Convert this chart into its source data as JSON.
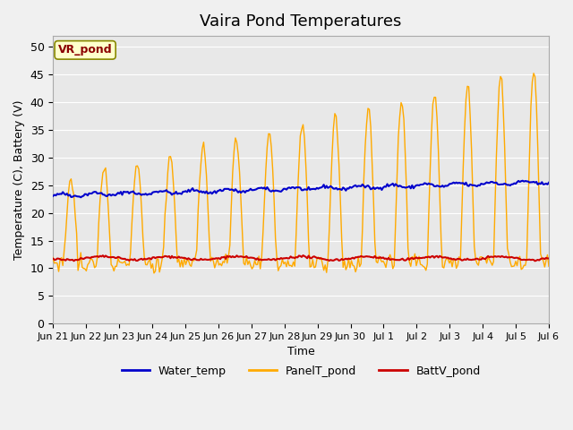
{
  "title": "Vaira Pond Temperatures",
  "xlabel": "Time",
  "ylabel": "Temperature (C), Battery (V)",
  "ylim": [
    0,
    52
  ],
  "yticks": [
    0,
    5,
    10,
    15,
    20,
    25,
    30,
    35,
    40,
    45,
    50
  ],
  "site_label": "VR_pond",
  "bg_color": "#e8e8e8",
  "plot_bg_color": "#e8e8e8",
  "water_color": "#0000cc",
  "panel_color": "#ffaa00",
  "batt_color": "#cc0000",
  "legend_labels": [
    "Water_temp",
    "PanelT_pond",
    "BattV_pond"
  ],
  "x_tick_labels": [
    "Jun 21",
    "Jun 22",
    "Jun 23",
    "Jun 24",
    "Jun 25",
    "Jun 26",
    "Jun 27",
    "Jun 28",
    "Jun 29",
    "Jun 30",
    "Jul 1",
    "Jul 2",
    "Jul 3",
    "Jul 4",
    "Jul 5",
    "Jul 6"
  ],
  "num_days": 16
}
